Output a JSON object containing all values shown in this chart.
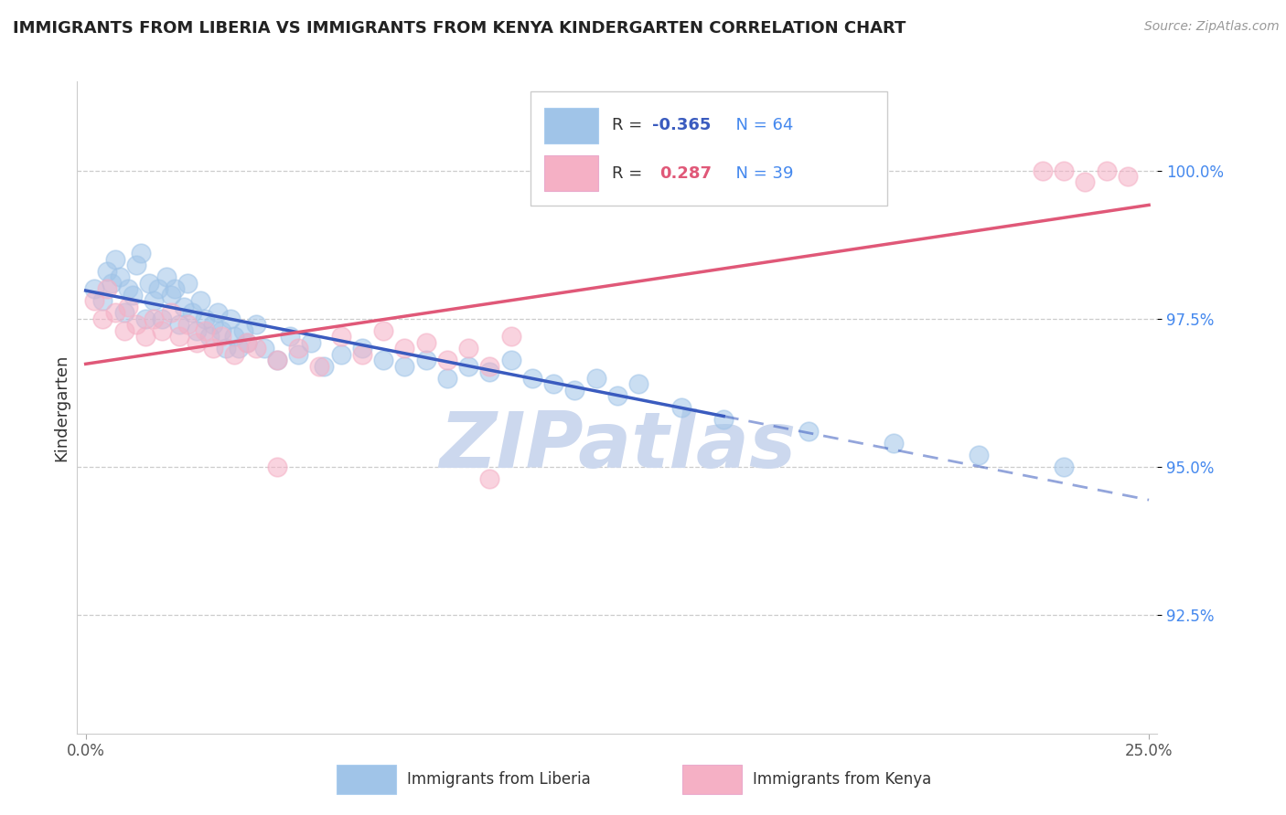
{
  "title": "IMMIGRANTS FROM LIBERIA VS IMMIGRANTS FROM KENYA KINDERGARTEN CORRELATION CHART",
  "source": "Source: ZipAtlas.com",
  "xlabel_blue": "Immigrants from Liberia",
  "xlabel_pink": "Immigrants from Kenya",
  "ylabel": "Kindergarten",
  "xlim": [
    -0.2,
    25.2
  ],
  "ylim": [
    90.5,
    101.5
  ],
  "yticks": [
    92.5,
    95.0,
    97.5,
    100.0
  ],
  "R_blue": -0.365,
  "N_blue": 64,
  "R_pink": 0.287,
  "N_pink": 39,
  "blue_color": "#a0c4e8",
  "pink_color": "#f5b0c5",
  "blue_line_color": "#3a5bbf",
  "pink_line_color": "#e05878",
  "watermark": "ZIPatlas",
  "watermark_color": "#ccd8ee",
  "blue_scatter_x": [
    0.2,
    0.4,
    0.5,
    0.6,
    0.7,
    0.8,
    0.9,
    1.0,
    1.1,
    1.2,
    1.3,
    1.4,
    1.5,
    1.6,
    1.7,
    1.8,
    1.9,
    2.0,
    2.1,
    2.2,
    2.3,
    2.4,
    2.5,
    2.6,
    2.7,
    2.8,
    2.9,
    3.0,
    3.1,
    3.2,
    3.3,
    3.4,
    3.5,
    3.6,
    3.7,
    3.8,
    4.0,
    4.2,
    4.5,
    4.8,
    5.0,
    5.3,
    5.6,
    6.0,
    6.5,
    7.0,
    7.5,
    8.0,
    8.5,
    9.0,
    9.5,
    10.0,
    10.5,
    11.0,
    11.5,
    12.0,
    12.5,
    13.0,
    14.0,
    15.0,
    17.0,
    19.0,
    21.0,
    23.0
  ],
  "blue_scatter_y": [
    98.0,
    97.8,
    98.3,
    98.1,
    98.5,
    98.2,
    97.6,
    98.0,
    97.9,
    98.4,
    98.6,
    97.5,
    98.1,
    97.8,
    98.0,
    97.5,
    98.2,
    97.9,
    98.0,
    97.4,
    97.7,
    98.1,
    97.6,
    97.3,
    97.8,
    97.5,
    97.2,
    97.4,
    97.6,
    97.3,
    97.0,
    97.5,
    97.2,
    97.0,
    97.3,
    97.1,
    97.4,
    97.0,
    96.8,
    97.2,
    96.9,
    97.1,
    96.7,
    96.9,
    97.0,
    96.8,
    96.7,
    96.8,
    96.5,
    96.7,
    96.6,
    96.8,
    96.5,
    96.4,
    96.3,
    96.5,
    96.2,
    96.4,
    96.0,
    95.8,
    95.6,
    95.4,
    95.2,
    95.0
  ],
  "pink_scatter_x": [
    0.2,
    0.4,
    0.5,
    0.7,
    0.9,
    1.0,
    1.2,
    1.4,
    1.6,
    1.8,
    2.0,
    2.2,
    2.4,
    2.6,
    2.8,
    3.0,
    3.2,
    3.5,
    3.8,
    4.0,
    4.5,
    5.0,
    5.5,
    6.0,
    6.5,
    7.0,
    7.5,
    8.0,
    8.5,
    9.0,
    9.5,
    10.0,
    4.5,
    9.5,
    22.5,
    23.0,
    23.5,
    24.0,
    24.5
  ],
  "pink_scatter_y": [
    97.8,
    97.5,
    98.0,
    97.6,
    97.3,
    97.7,
    97.4,
    97.2,
    97.5,
    97.3,
    97.6,
    97.2,
    97.4,
    97.1,
    97.3,
    97.0,
    97.2,
    96.9,
    97.1,
    97.0,
    96.8,
    97.0,
    96.7,
    97.2,
    96.9,
    97.3,
    97.0,
    97.1,
    96.8,
    97.0,
    96.7,
    97.2,
    95.0,
    94.8,
    100.0,
    100.0,
    99.8,
    100.0,
    99.9
  ],
  "blue_line_solid_end": 15.0,
  "blue_line_x_start": 0.0,
  "blue_line_x_end": 25.0,
  "pink_line_x_start": 0.0,
  "pink_line_x_end": 25.0
}
